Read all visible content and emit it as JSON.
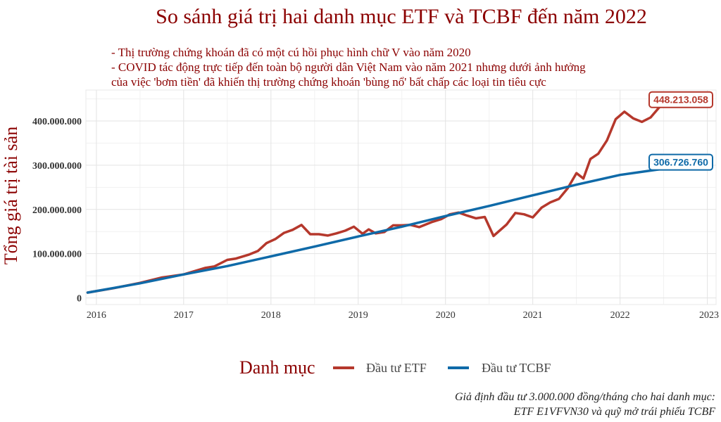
{
  "chart_data": {
    "type": "line",
    "title": "So sánh giá trị hai danh mục ETF và TCBF đến năm 2022",
    "subtitle_lines": [
      "- Thị trường chứng khoán đã có một cú hồi phục hình chữ V vào năm 2020",
      "- COVID tác động trực tiếp đến toàn bộ người dân Việt Nam vào năm 2021 nhưng dưới ảnh hưởng",
      "của việc 'bơm tiền' đã khiến thị trường chứng khoán 'bùng nổ' bất chấp các loại tin tiêu cực"
    ],
    "ylabel": "Tổng giá trị tài sản",
    "xlim": [
      2015.88,
      2023.1
    ],
    "ylim": [
      -15000000,
      470000000
    ],
    "x_ticks": [
      2016,
      2017,
      2018,
      2019,
      2020,
      2021,
      2022,
      2023
    ],
    "x_tick_labels": [
      "2016",
      "2017",
      "2018",
      "2019",
      "2020",
      "2021",
      "2022",
      "2023"
    ],
    "y_ticks": [
      0,
      100000000,
      200000000,
      300000000,
      400000000
    ],
    "y_tick_labels": [
      "0",
      "100.000.000",
      "200.000.000",
      "300.000.000",
      "400.000.000"
    ],
    "grid": true,
    "legend_title": "Danh mục",
    "legend_position": "bottom",
    "series": [
      {
        "name": "Đầu tư ETF",
        "color": "#b5382c",
        "end_label": "448.213.058",
        "points": [
          [
            2015.9,
            12000000
          ],
          [
            2016.2,
            22000000
          ],
          [
            2016.5,
            34000000
          ],
          [
            2016.75,
            46000000
          ],
          [
            2017.0,
            53000000
          ],
          [
            2017.25,
            68000000
          ],
          [
            2017.35,
            71000000
          ],
          [
            2017.5,
            86000000
          ],
          [
            2017.6,
            89000000
          ],
          [
            2017.75,
            98000000
          ],
          [
            2017.85,
            106000000
          ],
          [
            2017.95,
            124000000
          ],
          [
            2018.05,
            133000000
          ],
          [
            2018.15,
            147000000
          ],
          [
            2018.25,
            154000000
          ],
          [
            2018.35,
            165000000
          ],
          [
            2018.45,
            144000000
          ],
          [
            2018.55,
            144000000
          ],
          [
            2018.65,
            141000000
          ],
          [
            2018.75,
            146000000
          ],
          [
            2018.85,
            152000000
          ],
          [
            2018.95,
            161000000
          ],
          [
            2019.05,
            145000000
          ],
          [
            2019.12,
            155000000
          ],
          [
            2019.2,
            146000000
          ],
          [
            2019.3,
            149000000
          ],
          [
            2019.4,
            164000000
          ],
          [
            2019.5,
            164000000
          ],
          [
            2019.6,
            165000000
          ],
          [
            2019.7,
            160000000
          ],
          [
            2019.85,
            172000000
          ],
          [
            2019.95,
            178000000
          ],
          [
            2020.05,
            189000000
          ],
          [
            2020.15,
            193000000
          ],
          [
            2020.25,
            186000000
          ],
          [
            2020.35,
            180000000
          ],
          [
            2020.45,
            183000000
          ],
          [
            2020.55,
            140000000
          ],
          [
            2020.7,
            166000000
          ],
          [
            2020.8,
            192000000
          ],
          [
            2020.9,
            189000000
          ],
          [
            2021.0,
            182000000
          ],
          [
            2021.1,
            204000000
          ],
          [
            2021.2,
            216000000
          ],
          [
            2021.3,
            224000000
          ],
          [
            2021.4,
            248000000
          ],
          [
            2021.5,
            282000000
          ],
          [
            2021.58,
            270000000
          ],
          [
            2021.66,
            314000000
          ],
          [
            2021.75,
            326000000
          ],
          [
            2021.85,
            356000000
          ],
          [
            2021.95,
            404000000
          ],
          [
            2022.05,
            421000000
          ],
          [
            2022.15,
            406000000
          ],
          [
            2022.25,
            398000000
          ],
          [
            2022.35,
            408000000
          ],
          [
            2022.45,
            431000000
          ],
          [
            2022.55,
            441000000
          ],
          [
            2022.65,
            444000000
          ],
          [
            2022.75,
            441000000
          ],
          [
            2022.85,
            438000000
          ],
          [
            2022.95,
            448213058
          ]
        ]
      },
      {
        "name": "Đầu tư TCBF",
        "color": "#0f6aa8",
        "end_label": "306.726.760",
        "points": [
          [
            2015.9,
            12000000
          ],
          [
            2016.5,
            33000000
          ],
          [
            2017.0,
            53000000
          ],
          [
            2017.5,
            72000000
          ],
          [
            2018.0,
            94000000
          ],
          [
            2018.5,
            116000000
          ],
          [
            2019.0,
            139000000
          ],
          [
            2019.5,
            161000000
          ],
          [
            2020.0,
            185000000
          ],
          [
            2020.5,
            208000000
          ],
          [
            2021.0,
            232000000
          ],
          [
            2021.5,
            256000000
          ],
          [
            2022.0,
            278000000
          ],
          [
            2022.5,
            292000000
          ],
          [
            2022.95,
            306726760
          ]
        ]
      }
    ],
    "caption_lines": [
      "Giả định đầu tư 3.000.000 đồng/tháng cho hai danh mục:",
      "ETF E1VFVN30 và quỹ mở trái phiếu TCBF"
    ]
  }
}
